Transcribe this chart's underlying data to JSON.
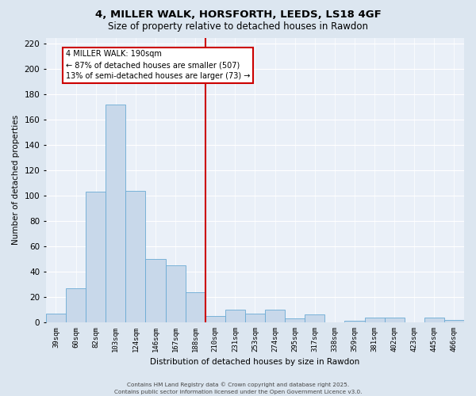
{
  "title": "4, MILLER WALK, HORSFORTH, LEEDS, LS18 4GF",
  "subtitle": "Size of property relative to detached houses in Rawdon",
  "xlabel": "Distribution of detached houses by size in Rawdon",
  "ylabel": "Number of detached properties",
  "bar_labels": [
    "39sqm",
    "60sqm",
    "82sqm",
    "103sqm",
    "124sqm",
    "146sqm",
    "167sqm",
    "188sqm",
    "210sqm",
    "231sqm",
    "253sqm",
    "274sqm",
    "295sqm",
    "317sqm",
    "338sqm",
    "359sqm",
    "381sqm",
    "402sqm",
    "423sqm",
    "445sqm",
    "466sqm"
  ],
  "bar_values": [
    7,
    27,
    103,
    172,
    104,
    50,
    45,
    24,
    5,
    10,
    7,
    10,
    3,
    6,
    0,
    1,
    4,
    4,
    0,
    4,
    2
  ],
  "bar_color": "#c8d8ea",
  "bar_edge_color": "#6aaad4",
  "vline_color": "#cc0000",
  "vline_pos": 7.5,
  "ylim": [
    0,
    225
  ],
  "yticks": [
    0,
    20,
    40,
    60,
    80,
    100,
    120,
    140,
    160,
    180,
    200,
    220
  ],
  "annotation_title": "4 MILLER WALK: 190sqm",
  "annotation_line1": "← 87% of detached houses are smaller (507)",
  "annotation_line2": "13% of semi-detached houses are larger (73) →",
  "annotation_box_color": "#ffffff",
  "annotation_box_edge": "#cc0000",
  "footer1": "Contains HM Land Registry data © Crown copyright and database right 2025.",
  "footer2": "Contains public sector information licensed under the Open Government Licence v3.0.",
  "background_color": "#dce6f0",
  "plot_background": "#eaf0f8"
}
